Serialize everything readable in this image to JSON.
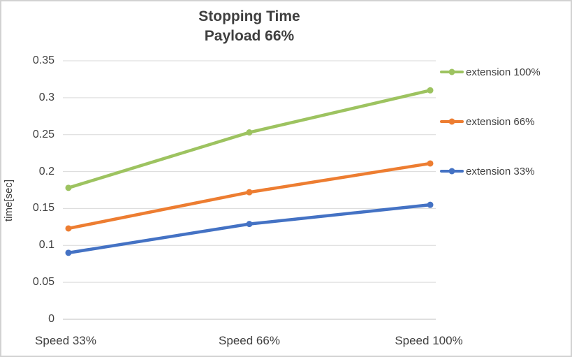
{
  "chart_data": {
    "type": "line",
    "title": "Stopping Time",
    "subtitle": "Payload 66%",
    "ylabel": "time[sec]",
    "xlabel": "",
    "categories": [
      "Speed 33%",
      "Speed 66%",
      "Speed 100%"
    ],
    "series": [
      {
        "name": "extension 100%",
        "color": "#9dc360",
        "values": [
          0.178,
          0.253,
          0.31
        ]
      },
      {
        "name": "extension 66%",
        "color": "#ed7d31",
        "values": [
          0.123,
          0.172,
          0.211
        ]
      },
      {
        "name": "extension 33%",
        "color": "#4472c4",
        "values": [
          0.09,
          0.129,
          0.155
        ]
      }
    ],
    "ylim": [
      0,
      0.35
    ],
    "yticks": [
      0,
      0.05,
      0.1,
      0.15,
      0.2,
      0.25,
      0.3,
      0.35
    ],
    "ytick_labels": [
      "0",
      "0.05",
      "0.1",
      "0.15",
      "0.2",
      "0.25",
      "0.3",
      "0.35"
    ],
    "grid": "horizontal",
    "legend_position": "right",
    "colors": {
      "gridline": "#d9d9d9",
      "axis_line": "#bfbfbf",
      "text": "#404040"
    }
  }
}
